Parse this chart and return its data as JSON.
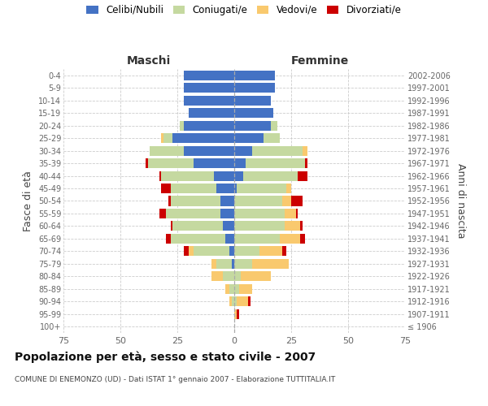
{
  "age_groups": [
    "100+",
    "95-99",
    "90-94",
    "85-89",
    "80-84",
    "75-79",
    "70-74",
    "65-69",
    "60-64",
    "55-59",
    "50-54",
    "45-49",
    "40-44",
    "35-39",
    "30-34",
    "25-29",
    "20-24",
    "15-19",
    "10-14",
    "5-9",
    "0-4"
  ],
  "birth_years": [
    "≤ 1906",
    "1907-1911",
    "1912-1916",
    "1917-1921",
    "1922-1926",
    "1927-1931",
    "1932-1936",
    "1937-1941",
    "1942-1946",
    "1947-1951",
    "1952-1956",
    "1957-1961",
    "1962-1966",
    "1967-1971",
    "1972-1976",
    "1977-1981",
    "1982-1986",
    "1987-1991",
    "1992-1996",
    "1997-2001",
    "2002-2006"
  ],
  "colors": {
    "celibi": "#4472C4",
    "coniugati": "#C5D9A0",
    "vedovi": "#F9C96E",
    "divorziati": "#CC0000"
  },
  "maschi": {
    "celibi": [
      0,
      0,
      0,
      0,
      0,
      1,
      2,
      4,
      5,
      6,
      6,
      8,
      9,
      18,
      22,
      27,
      22,
      20,
      22,
      22,
      22
    ],
    "coniugati": [
      0,
      0,
      1,
      2,
      5,
      7,
      16,
      24,
      22,
      24,
      22,
      20,
      23,
      20,
      15,
      4,
      2,
      0,
      0,
      0,
      0
    ],
    "vedovi": [
      0,
      0,
      1,
      2,
      5,
      2,
      2,
      0,
      0,
      0,
      0,
      0,
      0,
      0,
      0,
      1,
      0,
      0,
      0,
      0,
      0
    ],
    "divorziati": [
      0,
      0,
      0,
      0,
      0,
      0,
      2,
      2,
      1,
      3,
      1,
      4,
      1,
      1,
      0,
      0,
      0,
      0,
      0,
      0,
      0
    ]
  },
  "femmine": {
    "celibi": [
      0,
      0,
      0,
      0,
      0,
      0,
      0,
      0,
      0,
      0,
      0,
      1,
      4,
      5,
      8,
      13,
      16,
      17,
      16,
      18,
      18
    ],
    "coniugati": [
      0,
      0,
      1,
      2,
      3,
      8,
      11,
      20,
      22,
      22,
      21,
      22,
      24,
      26,
      22,
      7,
      3,
      0,
      0,
      0,
      0
    ],
    "vedovi": [
      0,
      1,
      5,
      6,
      13,
      16,
      10,
      9,
      7,
      5,
      4,
      2,
      0,
      0,
      2,
      0,
      0,
      0,
      0,
      0,
      0
    ],
    "divorziati": [
      0,
      1,
      1,
      0,
      0,
      0,
      2,
      2,
      1,
      1,
      5,
      0,
      4,
      1,
      0,
      0,
      0,
      0,
      0,
      0,
      0
    ]
  },
  "xlim": 75,
  "title": "Popolazione per età, sesso e stato civile - 2007",
  "subtitle": "COMUNE DI ENEMONZO (UD) - Dati ISTAT 1° gennaio 2007 - Elaborazione TUTTITALIA.IT",
  "ylabel_left": "Fasce di età",
  "ylabel_right": "Anni di nascita",
  "header_left": "Maschi",
  "header_right": "Femmine",
  "legend_labels": [
    "Celibi/Nubili",
    "Coniugati/e",
    "Vedovi/e",
    "Divorziati/e"
  ],
  "bg_color": "#FFFFFF",
  "grid_color": "#CCCCCC",
  "tick_color": "#666666"
}
